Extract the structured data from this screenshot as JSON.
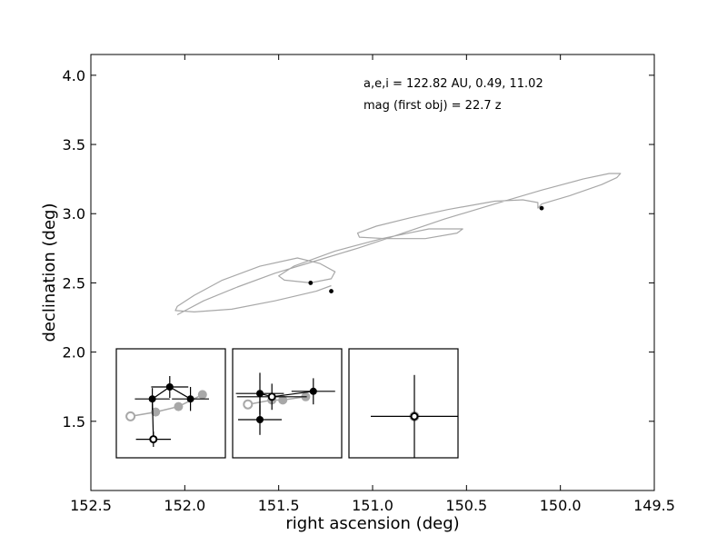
{
  "chart_data": {
    "type": "scatter",
    "xlabel": "right ascension (deg)",
    "ylabel": "declination (deg)",
    "xlim": [
      152.5,
      149.5
    ],
    "ylim": [
      1.0,
      4.15
    ],
    "x_inverted": true,
    "xticks": [
      152.5,
      152.0,
      151.5,
      151.0,
      150.5,
      150.0,
      149.5
    ],
    "xtick_labels": [
      "152.5",
      "152.0",
      "151.5",
      "151.0",
      "150.5",
      "150.0",
      "149.5"
    ],
    "yticks": [
      1.5,
      2.0,
      2.5,
      3.0,
      3.5,
      4.0
    ],
    "ytick_labels": [
      "1.5",
      "2.0",
      "2.5",
      "3.0",
      "3.5",
      "4.0"
    ],
    "grid": false,
    "annotations": [
      "a,e,i = 122.82 AU, 0.49, 11.02",
      "mag (first obj) =  22.7 z"
    ],
    "colors": {
      "orbit": "#a8a8a8",
      "point": "#000000",
      "inset_grey": "#a8a8a8"
    },
    "points": [
      {
        "ra": 151.33,
        "dec": 2.5
      },
      {
        "ra": 151.22,
        "dec": 2.44
      },
      {
        "ra": 150.1,
        "dec": 3.04
      }
    ],
    "orbit_track": [
      [
        152.04,
        2.27
      ],
      [
        151.9,
        2.37
      ],
      [
        151.72,
        2.47
      ],
      [
        151.52,
        2.57
      ],
      [
        151.3,
        2.66
      ],
      [
        151.08,
        2.75
      ],
      [
        150.88,
        2.84
      ],
      [
        150.62,
        2.96
      ],
      [
        150.35,
        3.07
      ],
      [
        150.1,
        3.17
      ],
      [
        149.88,
        3.25
      ],
      [
        149.74,
        3.29
      ],
      [
        149.68,
        3.29
      ],
      [
        149.7,
        3.26
      ],
      [
        149.78,
        3.21
      ],
      [
        149.95,
        3.13
      ],
      [
        150.1,
        3.07
      ],
      [
        150.12,
        3.04
      ],
      [
        150.12,
        3.08
      ],
      [
        150.2,
        3.1
      ],
      [
        150.35,
        3.09
      ],
      [
        150.6,
        3.03
      ],
      [
        150.8,
        2.97
      ],
      [
        150.98,
        2.91
      ],
      [
        151.08,
        2.86
      ],
      [
        151.07,
        2.83
      ],
      [
        150.93,
        2.82
      ],
      [
        150.72,
        2.82
      ],
      [
        150.55,
        2.86
      ],
      [
        150.52,
        2.89
      ],
      [
        150.7,
        2.89
      ],
      [
        150.95,
        2.82
      ],
      [
        151.2,
        2.73
      ],
      [
        151.42,
        2.62
      ],
      [
        151.5,
        2.55
      ],
      [
        151.47,
        2.52
      ],
      [
        151.33,
        2.5
      ],
      [
        151.22,
        2.53
      ],
      [
        151.2,
        2.58
      ],
      [
        151.28,
        2.64
      ],
      [
        151.4,
        2.68
      ],
      [
        151.6,
        2.62
      ],
      [
        151.8,
        2.52
      ],
      [
        151.95,
        2.41
      ],
      [
        152.04,
        2.33
      ],
      [
        152.05,
        2.3
      ],
      [
        151.95,
        2.29
      ],
      [
        151.75,
        2.31
      ],
      [
        151.52,
        2.37
      ],
      [
        151.3,
        2.44
      ],
      [
        151.22,
        2.48
      ]
    ],
    "insets": [
      {
        "grey_points": [
          [
            0.13,
            0.62
          ],
          [
            0.36,
            0.58
          ],
          [
            0.57,
            0.53
          ],
          [
            0.79,
            0.42
          ]
        ],
        "grey_open": [
          0.13,
          0.62
        ],
        "black_points": [
          {
            "p": [
              0.33,
              0.46
            ],
            "ex": 0.16,
            "ey": 0.1
          },
          {
            "p": [
              0.49,
              0.35
            ],
            "ex": 0.17,
            "ey": 0.1
          },
          {
            "p": [
              0.68,
              0.46
            ],
            "ex": 0.17,
            "ey": 0.11
          }
        ],
        "black_open": {
          "p": [
            0.34,
            0.83
          ],
          "ex": 0.16,
          "ey": 0.07
        },
        "black_line": [
          [
            0.34,
            0.83
          ],
          [
            0.33,
            0.46
          ],
          [
            0.49,
            0.35
          ],
          [
            0.68,
            0.46
          ]
        ]
      },
      {
        "grey_points": [
          [
            0.14,
            0.51
          ],
          [
            0.36,
            0.47
          ],
          [
            0.46,
            0.47
          ],
          [
            0.67,
            0.44
          ]
        ],
        "grey_open": [
          0.14,
          0.51
        ],
        "black_points": [
          {
            "p": [
              0.25,
              0.41
            ],
            "ex": 0.22,
            "ey": 0.19
          },
          {
            "p": [
              0.25,
              0.65
            ],
            "ex": 0.2,
            "ey": 0.14
          },
          {
            "p": [
              0.74,
              0.39
            ],
            "ex": 0.2,
            "ey": 0.12
          }
        ],
        "black_open": {
          "p": [
            0.36,
            0.44
          ],
          "ex": 0.32,
          "ey": 0.12
        },
        "black_line": [
          [
            0.25,
            0.65
          ],
          [
            0.25,
            0.41
          ],
          [
            0.36,
            0.44
          ],
          [
            0.74,
            0.39
          ]
        ]
      },
      {
        "grey_points": [],
        "grey_open": [
          0.6,
          0.62
        ],
        "black_points": [],
        "black_open": {
          "p": [
            0.6,
            0.62
          ],
          "ex": 0.4,
          "ey": 0.38
        },
        "black_line": []
      }
    ]
  }
}
